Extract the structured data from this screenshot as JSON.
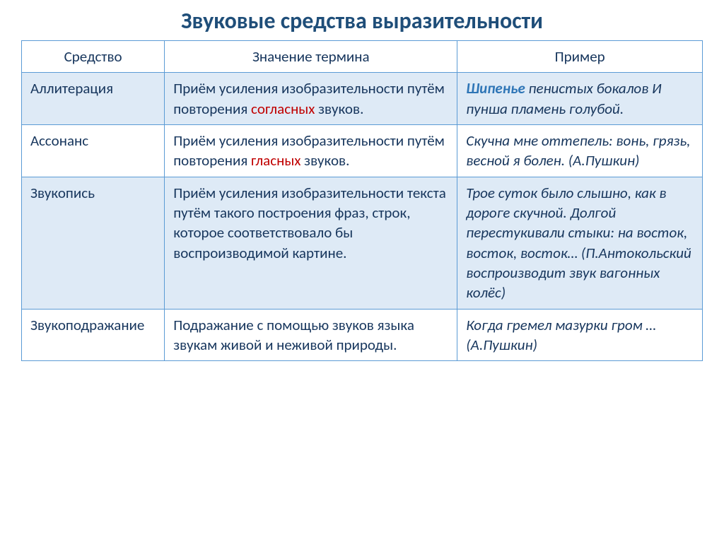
{
  "title": "Звуковые средства выразительности",
  "colors": {
    "title": "#1f4e79",
    "border": "#5b9bd5",
    "shaded_row": "#deeaf6",
    "text": "#17365d",
    "highlight_red": "#c00000",
    "highlight_blue": "#2e75b6"
  },
  "columns": [
    "Средство",
    "Значение термина",
    "Пример"
  ],
  "rows": [
    {
      "term": "Аллитерация",
      "def_pre": "Приём усиления изобразительности путём повторения ",
      "def_hl": "согласных",
      "def_post": " звуков.",
      "example_bold": "Шипенье",
      "example_rest": " пенистых бокалов И пунша пламень голубой.",
      "shaded": true
    },
    {
      "term": "Ассонанс",
      "def_pre": "Приём усиления изобразительности путём повторения ",
      "def_hl": "гласных",
      "def_post": " звуков.",
      "example_bold": "",
      "example_rest": "Скучна мне оттепель: вонь, грязь, весной я болен. (А.Пушкин)",
      "shaded": false
    },
    {
      "term": "Звукопись",
      "def_pre": "Приём усиления изобразительности текста путём такого построения фраз, строк, которое соответствовало бы воспроизводимой картине.",
      "def_hl": "",
      "def_post": "",
      "example_bold": "",
      "example_rest": "Трое суток было слышно, как в дороге скучной. Долгой перестукивали стыки: на восток, восток, восток… (П.Антокольский воспроизводит звук вагонных колёс)",
      "shaded": true
    },
    {
      "term": "Звукоподражание",
      "def_pre": "Подражание с помощью звуков языка звукам живой и неживой природы.",
      "def_hl": "",
      "def_post": "",
      "example_bold": "",
      "example_rest": "Когда гремел мазурки гром …(А.Пушкин)",
      "shaded": false
    }
  ]
}
